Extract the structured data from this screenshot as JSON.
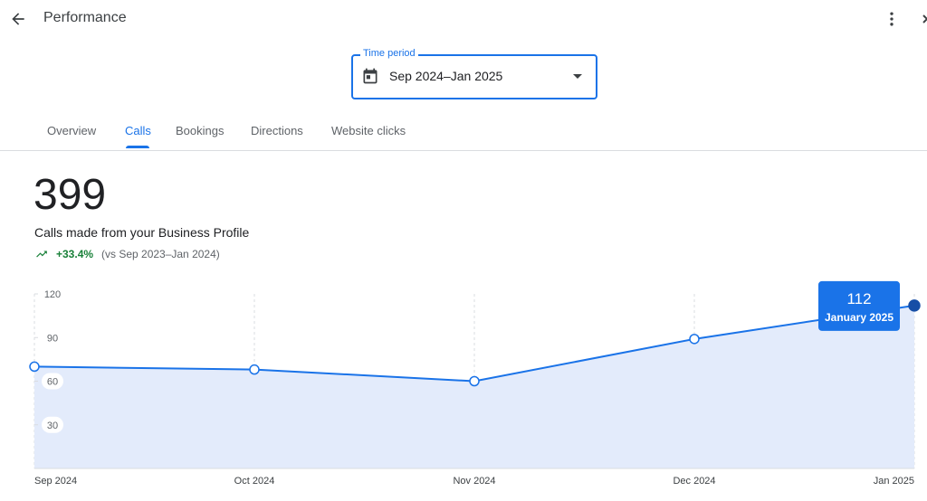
{
  "header": {
    "title": "Performance"
  },
  "time_period": {
    "label": "Time period",
    "value": "Sep 2024–Jan 2025"
  },
  "tabs": [
    "Overview",
    "Calls",
    "Bookings",
    "Directions",
    "Website clicks"
  ],
  "summary": {
    "total": 399,
    "description": "Calls made from your Business Profile",
    "change": "+33.4%",
    "comparison": "(vs Sep 2023–Jan 2024)"
  },
  "chart_data": {
    "type": "area",
    "categories": [
      "Sep 2024",
      "Oct 2024",
      "Nov 2024",
      "Dec 2024",
      "Jan 2025"
    ],
    "values": [
      70,
      68,
      60,
      89,
      112
    ],
    "color": "#1a73e8",
    "fill": "#e3ebfb",
    "ylim": [
      0,
      120
    ],
    "yticks": [
      30,
      60,
      90,
      120
    ],
    "tooltip_label": "January 2025"
  }
}
